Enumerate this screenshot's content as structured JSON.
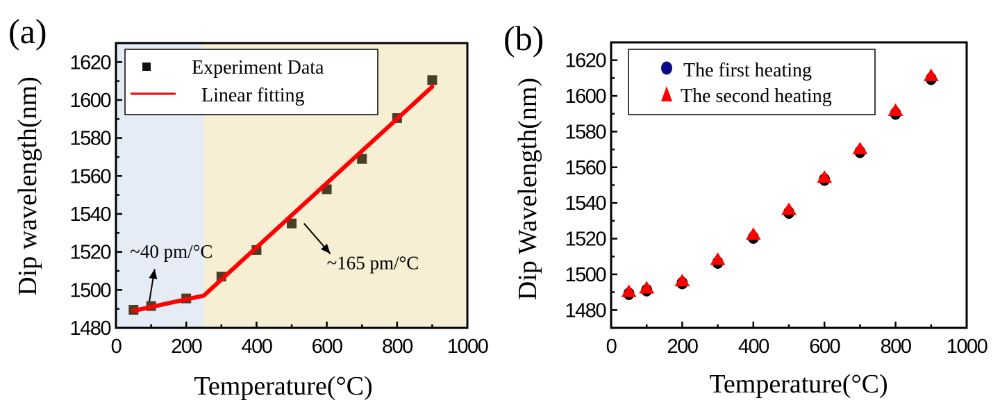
{
  "chart_data": [
    {
      "panel_label": "(a)",
      "type": "scatter",
      "title": "",
      "xlabel": "Temperature(°C)",
      "ylabel": "Dip wavelength(nm)",
      "xlim": [
        0,
        1000
      ],
      "ylim": [
        1480,
        1630
      ],
      "xticks": [
        0,
        200,
        400,
        600,
        800,
        1000
      ],
      "yticks": [
        1480,
        1500,
        1520,
        1540,
        1560,
        1580,
        1600,
        1620
      ],
      "x_tick_labels": [
        "0",
        "200",
        "400",
        "600",
        "800",
        "1000"
      ],
      "y_tick_labels": [
        "1480",
        "1500",
        "1520",
        "1540",
        "1560",
        "1580",
        "1600",
        "1620"
      ],
      "grid": false,
      "legend_position": "top-left",
      "background_regions": [
        {
          "x_range": [
            0,
            250
          ],
          "color": "#e5ecf6"
        },
        {
          "x_range": [
            250,
            1000
          ],
          "color": "#f7efd3"
        }
      ],
      "series": [
        {
          "name": "Experiment Data",
          "kind": "scatter",
          "marker": "square",
          "color": "#4a3f26",
          "legend_color": "#111111",
          "x": [
            50,
            100,
            200,
            300,
            400,
            500,
            600,
            700,
            800,
            900
          ],
          "y": [
            1489.5,
            1491.5,
            1495.5,
            1507,
            1521,
            1535,
            1553,
            1569,
            1590.5,
            1610.5
          ]
        },
        {
          "name": "Linear fitting",
          "kind": "line",
          "color": "#ff0000",
          "x": [
            50,
            250,
            900
          ],
          "y": [
            1489,
            1497,
            1607
          ]
        }
      ],
      "annotations": [
        {
          "text": "~40 pm/°C",
          "x": 40,
          "y": 1517,
          "arrow_from": [
            95,
            1494
          ],
          "arrow_to": [
            110,
            1511
          ]
        },
        {
          "text": "~165 pm/°C",
          "x": 600,
          "y": 1511,
          "arrow_from": [
            535,
            1535
          ],
          "arrow_to": [
            610,
            1519
          ]
        }
      ]
    },
    {
      "panel_label": "(b)",
      "type": "scatter",
      "title": "",
      "xlabel": "Temperature(°C)",
      "ylabel": "Dip Wavelength(nm)",
      "xlim": [
        0,
        1000
      ],
      "ylim": [
        1470,
        1630
      ],
      "xticks": [
        0,
        200,
        400,
        600,
        800,
        1000
      ],
      "yticks": [
        1480,
        1500,
        1520,
        1540,
        1560,
        1580,
        1600,
        1620
      ],
      "x_tick_labels": [
        "0",
        "200",
        "400",
        "600",
        "800",
        "1000"
      ],
      "y_tick_labels": [
        "1480",
        "1500",
        "1520",
        "1540",
        "1560",
        "1580",
        "1600",
        "1620"
      ],
      "grid": false,
      "legend_position": "top-left",
      "series": [
        {
          "name": "The first heating",
          "kind": "scatter",
          "marker": "circle",
          "color": "#000000",
          "legend_color": "#0a0a8a",
          "x": [
            50,
            100,
            200,
            300,
            400,
            500,
            600,
            700,
            800,
            900
          ],
          "y": [
            1489.5,
            1491.5,
            1495.5,
            1507,
            1521,
            1535,
            1553.5,
            1569,
            1590.5,
            1610
          ]
        },
        {
          "name": "The second heating",
          "kind": "scatter",
          "marker": "triangle",
          "color": "#ff0000",
          "x": [
            50,
            100,
            200,
            300,
            400,
            500,
            600,
            700,
            800,
            900
          ],
          "y": [
            1490,
            1492,
            1496,
            1508,
            1522,
            1536,
            1554,
            1570,
            1591.5,
            1611
          ]
        }
      ]
    }
  ]
}
